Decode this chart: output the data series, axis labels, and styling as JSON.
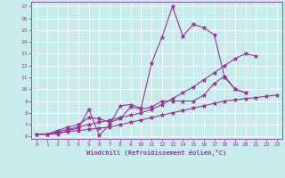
{
  "xlabel": "Windchill (Refroidissement éolien,°C)",
  "bg_color": "#c8ecec",
  "line_color": "#993399",
  "xlim": [
    -0.5,
    23.5
  ],
  "ylim": [
    5.8,
    17.4
  ],
  "xticks": [
    0,
    1,
    2,
    3,
    4,
    5,
    6,
    7,
    8,
    9,
    10,
    11,
    12,
    13,
    14,
    15,
    16,
    17,
    18,
    19,
    20,
    21,
    22,
    23
  ],
  "yticks": [
    6,
    7,
    8,
    9,
    10,
    11,
    12,
    13,
    14,
    15,
    16,
    17
  ],
  "series": [
    [
      6.2,
      6.2,
      6.2,
      6.5,
      6.7,
      8.3,
      6.1,
      7.0,
      8.6,
      8.7,
      8.4,
      12.2,
      14.4,
      17.0,
      14.5,
      15.5,
      15.2,
      14.6,
      11.0,
      10.0,
      9.7
    ],
    [
      6.2,
      6.2,
      6.5,
      6.8,
      7.0,
      7.6,
      7.5,
      7.2,
      7.5,
      8.5,
      8.3,
      8.5,
      9.0,
      9.0,
      9.0,
      9.0,
      9.5,
      10.5,
      11.1,
      10.0,
      9.7
    ],
    [
      6.2,
      6.2,
      6.4,
      6.6,
      6.8,
      7.0,
      7.2,
      7.4,
      7.6,
      7.8,
      8.0,
      8.3,
      8.7,
      9.2,
      9.7,
      10.2,
      10.8,
      11.4,
      12.0,
      12.6,
      13.0,
      12.8
    ],
    [
      6.2,
      6.2,
      6.3,
      6.4,
      6.5,
      6.6,
      6.7,
      6.8,
      7.0,
      7.2,
      7.4,
      7.6,
      7.8,
      8.0,
      8.2,
      8.4,
      8.6,
      8.8,
      9.0,
      9.1,
      9.2,
      9.3,
      9.4,
      9.5
    ]
  ],
  "series_x": [
    [
      0,
      1,
      2,
      3,
      4,
      5,
      6,
      7,
      8,
      9,
      10,
      11,
      12,
      13,
      14,
      15,
      16,
      17,
      18,
      19,
      20
    ],
    [
      0,
      1,
      2,
      3,
      4,
      5,
      6,
      7,
      8,
      9,
      10,
      11,
      12,
      13,
      14,
      15,
      16,
      17,
      18,
      19,
      20
    ],
    [
      0,
      1,
      2,
      3,
      4,
      5,
      6,
      7,
      8,
      9,
      10,
      11,
      12,
      13,
      14,
      15,
      16,
      17,
      18,
      19,
      20,
      21
    ],
    [
      0,
      1,
      2,
      3,
      4,
      5,
      6,
      7,
      8,
      9,
      10,
      11,
      12,
      13,
      14,
      15,
      16,
      17,
      18,
      19,
      20,
      21,
      22,
      23
    ]
  ]
}
